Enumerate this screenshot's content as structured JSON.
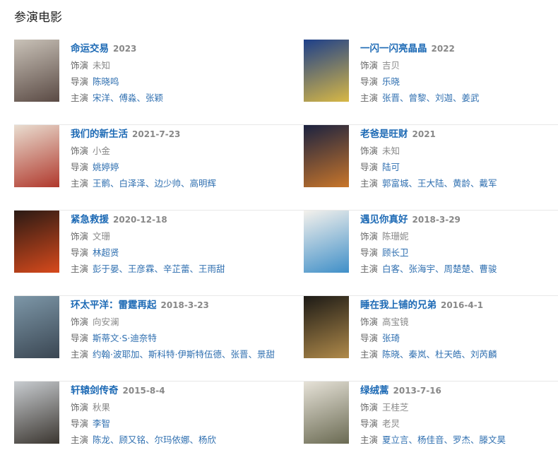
{
  "heading": "参演电影",
  "labels": {
    "role": "饰演",
    "director": "导演",
    "stars": "主演"
  },
  "movies": [
    {
      "title": "命运交易",
      "date": "2023",
      "role": "未知",
      "director": "陈晓鸣",
      "director_link": true,
      "stars": "宋洋、傅淼、张颖",
      "poster": [
        "#c9c2b8",
        "#5a4a44"
      ]
    },
    {
      "title": "一闪一闪亮晶晶",
      "date": "2022",
      "role": "吉贝",
      "director": "乐晓",
      "director_link": true,
      "stars": "张晋、曾黎、刘迦、姜武",
      "poster": [
        "#1d3f8a",
        "#d8b845"
      ]
    },
    {
      "title": "我们的新生活",
      "date": "2021-7-23",
      "role": "小金",
      "director": "姚婷婷",
      "director_link": true,
      "stars": "王鹡、白泽泽、边少帅、高明辉",
      "poster": [
        "#e9ddd0",
        "#b0382c"
      ]
    },
    {
      "title": "老爸是旺财",
      "date": "2021",
      "role": "未知",
      "director": "陆可",
      "director_link": true,
      "stars": "郭富城、王大陆、黄龄、戴军",
      "poster": [
        "#1b2240",
        "#c9762a"
      ]
    },
    {
      "title": "紧急救援",
      "date": "2020-12-18",
      "role": "文珊",
      "director": "林超贤",
      "director_link": true,
      "stars": "彭于晏、王彦霖、辛芷蕾、王雨甜",
      "poster": [
        "#2a1a14",
        "#d84a1c"
      ]
    },
    {
      "title": "遇见你真好",
      "date": "2018-3-29",
      "role": "陈珊妮",
      "director": "顾长卫",
      "director_link": true,
      "stars": "白客、张海宇、周楚楚、曹骏",
      "poster": [
        "#f4f1ec",
        "#3f8fc8"
      ]
    },
    {
      "title": "环太平洋：雷霆再起",
      "date": "2018-3-23",
      "role": "向安澜",
      "director": "斯蒂文·S·迪奈特",
      "director_link": true,
      "stars": "约翰·波耶加、斯科特·伊斯特伍德、张晋、景甜",
      "poster": [
        "#7d97a8",
        "#3a4652"
      ]
    },
    {
      "title": "睡在我上铺的兄弟",
      "date": "2016-4-1",
      "role": "高宝镜",
      "director": "张琦",
      "director_link": true,
      "stars": "陈晓、秦岚、杜天皓、刘芮麟",
      "poster": [
        "#1c1a16",
        "#b08a4a"
      ]
    },
    {
      "title": "轩辕剑传奇",
      "date": "2015-8-4",
      "role": "秋果",
      "director": "李智",
      "director_link": true,
      "stars": "陈龙、顾又铭、尔玛依娜、杨欣",
      "poster": [
        "#c8ccd0",
        "#3b3630"
      ]
    },
    {
      "title": "绿绒蒿",
      "date": "2013-7-16",
      "role": "王桂芝",
      "director": "老炅",
      "director_link": false,
      "stars": "夏立言、杨佳音、罗杰、滕文昊",
      "poster": [
        "#e6e2d8",
        "#6a6a52"
      ]
    }
  ]
}
